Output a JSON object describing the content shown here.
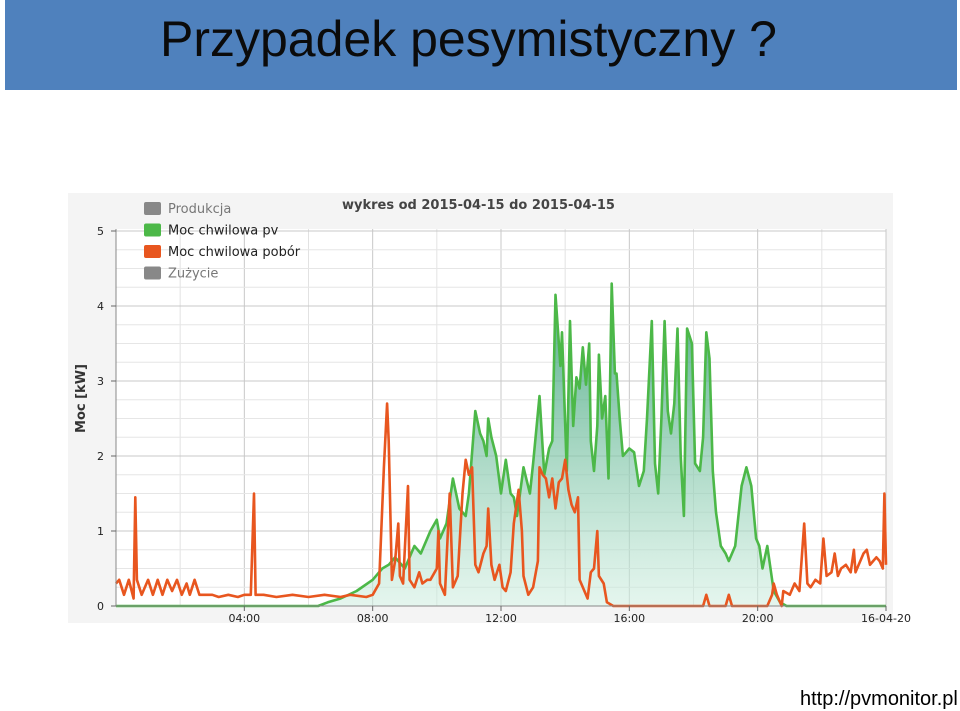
{
  "slide": {
    "title": "Przypadek pesymistyczny ?",
    "footer_url": "http://pvmonitor.pl",
    "title_bar_color": "#4f81bd"
  },
  "chart_data": {
    "type": "area",
    "title": "wykres od 2015-04-15 do 2015-04-15",
    "xlabel": "",
    "ylabel": "Moc [kW]",
    "ylim": [
      0,
      5
    ],
    "xlim": [
      0,
      24
    ],
    "y_ticks": [
      "0",
      "1",
      "2",
      "3",
      "4",
      "5"
    ],
    "x_ticks": [
      {
        "v": 4,
        "label": "04:00"
      },
      {
        "v": 8,
        "label": "08:00"
      },
      {
        "v": 12,
        "label": "12:00"
      },
      {
        "v": 16,
        "label": "16:00"
      },
      {
        "v": 20,
        "label": "20:00"
      },
      {
        "v": 24,
        "label": "16-04-20"
      }
    ],
    "grid": true,
    "legend_position": "top-left",
    "legend": [
      {
        "name": "Produkcja",
        "color": "#888888"
      },
      {
        "name": "Moc chwilowa pv",
        "color": "#4cb848"
      },
      {
        "name": "Moc chwilowa pobór",
        "color": "#e8561f"
      },
      {
        "name": "Zużycie",
        "color": "#888888"
      }
    ],
    "series": [
      {
        "name": "Moc chwilowa pv",
        "color": "#4cb848",
        "fill": true,
        "points": [
          [
            0,
            0
          ],
          [
            6.3,
            0
          ],
          [
            6.6,
            0.05
          ],
          [
            7.0,
            0.1
          ],
          [
            7.5,
            0.2
          ],
          [
            8.0,
            0.35
          ],
          [
            8.3,
            0.5
          ],
          [
            8.5,
            0.55
          ],
          [
            8.7,
            0.65
          ],
          [
            9.0,
            0.5
          ],
          [
            9.3,
            0.8
          ],
          [
            9.5,
            0.7
          ],
          [
            9.8,
            1.0
          ],
          [
            10.0,
            1.15
          ],
          [
            10.1,
            0.9
          ],
          [
            10.3,
            1.1
          ],
          [
            10.5,
            1.7
          ],
          [
            10.6,
            1.5
          ],
          [
            10.7,
            1.3
          ],
          [
            10.9,
            1.2
          ],
          [
            11.0,
            1.5
          ],
          [
            11.2,
            2.6
          ],
          [
            11.35,
            2.3
          ],
          [
            11.45,
            2.2
          ],
          [
            11.55,
            2.0
          ],
          [
            11.6,
            2.5
          ],
          [
            11.7,
            2.25
          ],
          [
            11.85,
            2.0
          ],
          [
            12.0,
            1.5
          ],
          [
            12.15,
            1.95
          ],
          [
            12.3,
            1.5
          ],
          [
            12.4,
            1.45
          ],
          [
            12.5,
            1.2
          ],
          [
            12.7,
            1.85
          ],
          [
            12.9,
            1.5
          ],
          [
            13.0,
            1.9
          ],
          [
            13.2,
            2.8
          ],
          [
            13.35,
            1.75
          ],
          [
            13.5,
            2.1
          ],
          [
            13.6,
            2.2
          ],
          [
            13.7,
            4.15
          ],
          [
            13.85,
            3.2
          ],
          [
            13.9,
            3.65
          ],
          [
            14.05,
            1.8
          ],
          [
            14.15,
            3.8
          ],
          [
            14.25,
            2.4
          ],
          [
            14.35,
            3.05
          ],
          [
            14.45,
            2.9
          ],
          [
            14.55,
            3.45
          ],
          [
            14.65,
            2.95
          ],
          [
            14.75,
            3.5
          ],
          [
            14.8,
            2.2
          ],
          [
            14.9,
            1.8
          ],
          [
            15.0,
            2.4
          ],
          [
            15.05,
            3.35
          ],
          [
            15.15,
            2.5
          ],
          [
            15.25,
            2.8
          ],
          [
            15.35,
            1.7
          ],
          [
            15.45,
            4.3
          ],
          [
            15.55,
            3.1
          ],
          [
            15.6,
            3.1
          ],
          [
            15.7,
            2.5
          ],
          [
            15.8,
            2.0
          ],
          [
            15.9,
            2.05
          ],
          [
            16.0,
            2.1
          ],
          [
            16.15,
            2.05
          ],
          [
            16.3,
            1.6
          ],
          [
            16.45,
            1.8
          ],
          [
            16.55,
            2.5
          ],
          [
            16.7,
            3.8
          ],
          [
            16.8,
            1.9
          ],
          [
            16.9,
            1.5
          ],
          [
            17.0,
            2.5
          ],
          [
            17.1,
            3.8
          ],
          [
            17.2,
            2.6
          ],
          [
            17.3,
            2.3
          ],
          [
            17.4,
            2.7
          ],
          [
            17.5,
            3.7
          ],
          [
            17.6,
            2.0
          ],
          [
            17.7,
            1.2
          ],
          [
            17.8,
            3.7
          ],
          [
            17.95,
            3.5
          ],
          [
            18.05,
            1.9
          ],
          [
            18.2,
            1.8
          ],
          [
            18.3,
            2.25
          ],
          [
            18.4,
            3.65
          ],
          [
            18.5,
            3.3
          ],
          [
            18.6,
            1.8
          ],
          [
            18.7,
            1.25
          ],
          [
            18.85,
            0.8
          ],
          [
            19.0,
            0.7
          ],
          [
            19.1,
            0.6
          ],
          [
            19.3,
            0.8
          ],
          [
            19.5,
            1.6
          ],
          [
            19.65,
            1.85
          ],
          [
            19.8,
            1.6
          ],
          [
            19.95,
            0.9
          ],
          [
            20.05,
            0.8
          ],
          [
            20.15,
            0.5
          ],
          [
            20.3,
            0.8
          ],
          [
            20.4,
            0.5
          ],
          [
            20.5,
            0.2
          ],
          [
            20.7,
            0.05
          ],
          [
            20.9,
            0
          ],
          [
            24,
            0
          ]
        ]
      },
      {
        "name": "Moc chwilowa pobór",
        "color": "#e8561f",
        "fill": false,
        "points": [
          [
            0,
            0.3
          ],
          [
            0.1,
            0.35
          ],
          [
            0.25,
            0.15
          ],
          [
            0.4,
            0.35
          ],
          [
            0.55,
            0.1
          ],
          [
            0.6,
            1.45
          ],
          [
            0.65,
            0.35
          ],
          [
            0.8,
            0.15
          ],
          [
            1.0,
            0.35
          ],
          [
            1.15,
            0.15
          ],
          [
            1.3,
            0.35
          ],
          [
            1.45,
            0.15
          ],
          [
            1.6,
            0.35
          ],
          [
            1.75,
            0.2
          ],
          [
            1.9,
            0.35
          ],
          [
            2.05,
            0.15
          ],
          [
            2.2,
            0.3
          ],
          [
            2.3,
            0.15
          ],
          [
            2.45,
            0.35
          ],
          [
            2.6,
            0.15
          ],
          [
            2.75,
            0.15
          ],
          [
            3.0,
            0.15
          ],
          [
            3.2,
            0.12
          ],
          [
            3.5,
            0.15
          ],
          [
            3.8,
            0.12
          ],
          [
            4.0,
            0.15
          ],
          [
            4.2,
            0.15
          ],
          [
            4.3,
            1.5
          ],
          [
            4.35,
            0.15
          ],
          [
            4.6,
            0.15
          ],
          [
            5.0,
            0.12
          ],
          [
            5.5,
            0.15
          ],
          [
            6.0,
            0.12
          ],
          [
            6.5,
            0.15
          ],
          [
            7.0,
            0.12
          ],
          [
            7.3,
            0.15
          ],
          [
            7.8,
            0.12
          ],
          [
            8.0,
            0.15
          ],
          [
            8.2,
            0.3
          ],
          [
            8.35,
            1.85
          ],
          [
            8.45,
            2.7
          ],
          [
            8.5,
            2.2
          ],
          [
            8.6,
            0.35
          ],
          [
            8.7,
            0.6
          ],
          [
            8.8,
            1.1
          ],
          [
            8.85,
            0.4
          ],
          [
            8.95,
            0.3
          ],
          [
            9.1,
            1.6
          ],
          [
            9.15,
            0.35
          ],
          [
            9.3,
            0.25
          ],
          [
            9.45,
            0.45
          ],
          [
            9.55,
            0.3
          ],
          [
            9.7,
            0.35
          ],
          [
            9.8,
            0.35
          ],
          [
            10.0,
            0.5
          ],
          [
            10.05,
            1.0
          ],
          [
            10.1,
            0.3
          ],
          [
            10.25,
            0.15
          ],
          [
            10.4,
            1.5
          ],
          [
            10.5,
            0.25
          ],
          [
            10.65,
            0.4
          ],
          [
            10.8,
            1.5
          ],
          [
            10.9,
            1.95
          ],
          [
            11.0,
            1.75
          ],
          [
            11.1,
            1.85
          ],
          [
            11.2,
            0.55
          ],
          [
            11.3,
            0.45
          ],
          [
            11.45,
            0.7
          ],
          [
            11.55,
            0.8
          ],
          [
            11.6,
            1.3
          ],
          [
            11.7,
            0.55
          ],
          [
            11.8,
            0.35
          ],
          [
            11.95,
            0.55
          ],
          [
            12.05,
            0.25
          ],
          [
            12.15,
            0.2
          ],
          [
            12.3,
            0.45
          ],
          [
            12.4,
            1.1
          ],
          [
            12.55,
            1.55
          ],
          [
            12.65,
            1.0
          ],
          [
            12.7,
            0.4
          ],
          [
            12.85,
            0.15
          ],
          [
            13.0,
            0.25
          ],
          [
            13.15,
            0.6
          ],
          [
            13.2,
            1.85
          ],
          [
            13.3,
            1.75
          ],
          [
            13.4,
            1.7
          ],
          [
            13.5,
            1.45
          ],
          [
            13.6,
            1.7
          ],
          [
            13.7,
            1.3
          ],
          [
            13.8,
            1.65
          ],
          [
            13.9,
            1.7
          ],
          [
            14.0,
            1.95
          ],
          [
            14.1,
            1.55
          ],
          [
            14.2,
            1.35
          ],
          [
            14.3,
            1.25
          ],
          [
            14.4,
            1.45
          ],
          [
            14.45,
            0.35
          ],
          [
            14.6,
            0.2
          ],
          [
            14.7,
            0.1
          ],
          [
            14.8,
            0.45
          ],
          [
            14.9,
            0.5
          ],
          [
            15.0,
            1.0
          ],
          [
            15.05,
            0.4
          ],
          [
            15.2,
            0.3
          ],
          [
            15.3,
            0.05
          ],
          [
            15.5,
            0
          ],
          [
            16.0,
            0
          ],
          [
            17.0,
            0
          ],
          [
            17.5,
            0
          ],
          [
            18.0,
            0
          ],
          [
            18.3,
            0
          ],
          [
            18.4,
            0.15
          ],
          [
            18.5,
            0
          ],
          [
            19.0,
            0
          ],
          [
            19.1,
            0.15
          ],
          [
            19.2,
            0
          ],
          [
            19.5,
            0
          ],
          [
            20.0,
            0
          ],
          [
            20.3,
            0
          ],
          [
            20.45,
            0.15
          ],
          [
            20.5,
            0.3
          ],
          [
            20.6,
            0.15
          ],
          [
            20.75,
            0
          ],
          [
            20.8,
            0.2
          ],
          [
            21.0,
            0.15
          ],
          [
            21.15,
            0.3
          ],
          [
            21.3,
            0.2
          ],
          [
            21.45,
            1.1
          ],
          [
            21.55,
            0.3
          ],
          [
            21.65,
            0.25
          ],
          [
            21.8,
            0.35
          ],
          [
            21.95,
            0.3
          ],
          [
            22.05,
            0.9
          ],
          [
            22.15,
            0.4
          ],
          [
            22.3,
            0.45
          ],
          [
            22.4,
            0.7
          ],
          [
            22.5,
            0.4
          ],
          [
            22.6,
            0.5
          ],
          [
            22.75,
            0.55
          ],
          [
            22.9,
            0.45
          ],
          [
            23.0,
            0.75
          ],
          [
            23.05,
            0.45
          ],
          [
            23.2,
            0.6
          ],
          [
            23.3,
            0.7
          ],
          [
            23.4,
            0.75
          ],
          [
            23.5,
            0.55
          ],
          [
            23.6,
            0.6
          ],
          [
            23.7,
            0.65
          ],
          [
            23.8,
            0.6
          ],
          [
            23.9,
            0.5
          ],
          [
            23.95,
            1.5
          ],
          [
            24,
            0.55
          ]
        ]
      }
    ]
  }
}
